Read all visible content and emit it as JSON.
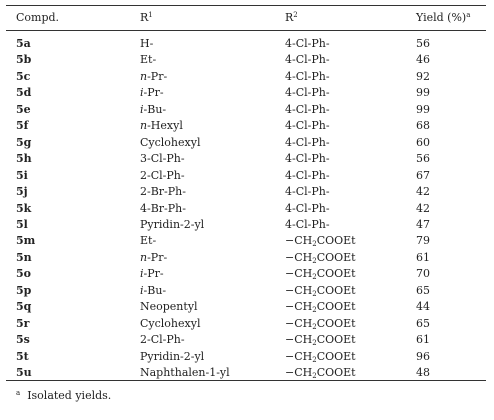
{
  "table": {
    "header": [
      {
        "text": "Compd."
      },
      {
        "text": "R",
        "sup": "1"
      },
      {
        "text": "R",
        "sup": "2"
      },
      {
        "text": "Yield (%)",
        "sup": "a"
      }
    ],
    "rows": [
      [
        "5a",
        "H-",
        "4-Cl-Ph-",
        56
      ],
      [
        "5b",
        "Et-",
        "4-Cl-Ph-",
        46
      ],
      [
        "5c",
        "n-Pr-",
        "4-Cl-Ph-",
        92
      ],
      [
        "5d",
        "i-Pr-",
        "4-Cl-Ph-",
        99
      ],
      [
        "5e",
        "i-Bu-",
        "4-Cl-Ph-",
        99
      ],
      [
        "5f",
        "n-Hexyl",
        "4-Cl-Ph-",
        68
      ],
      [
        "5g",
        "Cyclohexyl",
        "4-Cl-Ph-",
        60
      ],
      [
        "5h",
        "3-Cl-Ph-",
        "4-Cl-Ph-",
        56
      ],
      [
        "5i",
        "2-Cl-Ph-",
        "4-Cl-Ph-",
        67
      ],
      [
        "5j",
        "2-Br-Ph-",
        "4-Cl-Ph-",
        42
      ],
      [
        "5k",
        "4-Br-Ph-",
        "4-Cl-Ph-",
        42
      ],
      [
        "5l",
        "Pyridin-2-yl",
        "4-Cl-Ph-",
        47
      ],
      [
        "5m",
        "Et-",
        "−CH2COOEt",
        79
      ],
      [
        "5n",
        "n-Pr-",
        "−CH2COOEt",
        61
      ],
      [
        "5o",
        "i-Pr-",
        "−CH2COOEt",
        70
      ],
      [
        "5p",
        "i-Bu-",
        "−CH2COOEt",
        65
      ],
      [
        "5q",
        "Neopentyl",
        "−CH2COOEt",
        44
      ],
      [
        "5r",
        "Cyclohexyl",
        "−CH2COOEt",
        65
      ],
      [
        "5s",
        "2-Cl-Ph-",
        "−CH2COOEt",
        61
      ],
      [
        "5t",
        "Pyridin-2-yl",
        "−CH2COOEt",
        96
      ],
      [
        "5u",
        "Naphthalen-1-yl",
        "−CH2COOEt",
        48
      ]
    ],
    "footnote": {
      "mark": "a",
      "text": "Isolated yields."
    }
  }
}
